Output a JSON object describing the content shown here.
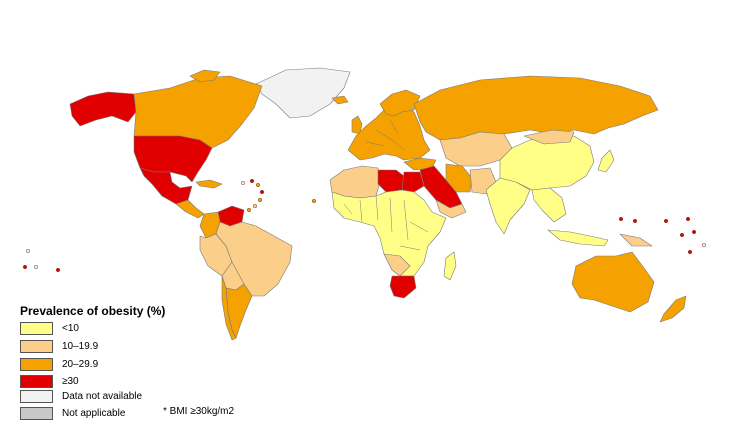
{
  "legend": {
    "title": "Prevalence of obesity (%)",
    "categories": [
      {
        "label": "<10",
        "color": "#ffff88"
      },
      {
        "label": "10–19.9",
        "color": "#fbcf8a"
      },
      {
        "label": "20–29.9",
        "color": "#f5a100"
      },
      {
        "label": "≥30",
        "color": "#e00000"
      },
      {
        "label": "Data not available",
        "color": "#f2f2f2"
      },
      {
        "label": "Not applicable",
        "color": "#c8c8c8"
      }
    ]
  },
  "footnote": "* BMI ≥30kg/m2",
  "regions": [
    {
      "name": "Alaska",
      "category": "≥30"
    },
    {
      "name": "Canada",
      "category": "20–29.9"
    },
    {
      "name": "United States",
      "category": "≥30"
    },
    {
      "name": "Mexico",
      "category": "≥30"
    },
    {
      "name": "Greenland",
      "category": "Data not available"
    },
    {
      "name": "Venezuela",
      "category": "≥30"
    },
    {
      "name": "Colombia",
      "category": "20–29.9"
    },
    {
      "name": "Brazil",
      "category": "10–19.9"
    },
    {
      "name": "Peru",
      "category": "10–19.9"
    },
    {
      "name": "Argentina",
      "category": "20–29.9"
    },
    {
      "name": "Chile",
      "category": "20–29.9"
    },
    {
      "name": "Europe",
      "category": "20–29.9"
    },
    {
      "name": "Russia",
      "category": "20–29.9"
    },
    {
      "name": "Libya",
      "category": "≥30"
    },
    {
      "name": "Egypt",
      "category": "≥30"
    },
    {
      "name": "Saudi Arabia",
      "category": "≥30"
    },
    {
      "name": "North Africa",
      "category": "10–19.9"
    },
    {
      "name": "Sub-Saharan Africa",
      "category": "<10"
    },
    {
      "name": "South Africa",
      "category": "≥30"
    },
    {
      "name": "Botswana",
      "category": "10–19.9"
    },
    {
      "name": "Iran",
      "category": "20–29.9"
    },
    {
      "name": "Central Asia",
      "category": "10–19.9"
    },
    {
      "name": "China",
      "category": "<10"
    },
    {
      "name": "India",
      "category": "<10"
    },
    {
      "name": "Southeast Asia",
      "category": "<10"
    },
    {
      "name": "Japan",
      "category": "<10"
    },
    {
      "name": "Australia",
      "category": "20–29.9"
    },
    {
      "name": "New Zealand",
      "category": "20–29.9"
    }
  ]
}
